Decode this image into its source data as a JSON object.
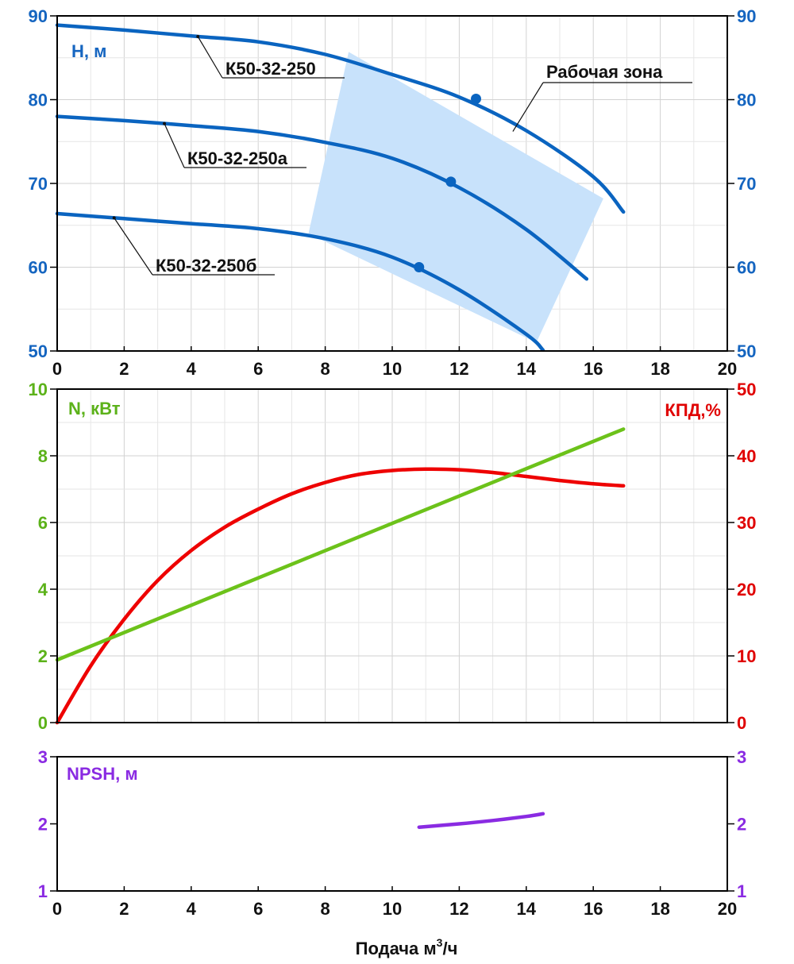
{
  "chart_data": [
    {
      "type": "line",
      "id": "head",
      "xlabel": "",
      "ylabel": "H, м",
      "xlim": [
        0,
        20
      ],
      "ylim": [
        50,
        90
      ],
      "x_ticks": [
        "0",
        "2",
        "4",
        "6",
        "8",
        "10",
        "12",
        "14",
        "16",
        "18",
        "20"
      ],
      "y_ticks": [
        "50",
        "60",
        "70",
        "80",
        "90"
      ],
      "grid": true,
      "colors": {
        "curve": "#0a64c0",
        "axis_label": "#1565c0",
        "zone": "#c8e2fb"
      },
      "series": [
        {
          "name": "К50-32-250",
          "x": [
            0,
            2,
            4,
            6,
            8,
            10,
            12,
            14,
            16,
            16.9
          ],
          "y": [
            88.9,
            88.3,
            87.6,
            86.9,
            85.4,
            83.0,
            80.3,
            76.3,
            70.8,
            66.6
          ],
          "marker": {
            "x": 12.5,
            "y": 80.1
          }
        },
        {
          "name": "К50-32-250а",
          "x": [
            0,
            2,
            4,
            6,
            8,
            10,
            12,
            14,
            15.8
          ],
          "y": [
            78.0,
            77.5,
            76.9,
            76.2,
            74.9,
            73.0,
            69.5,
            64.5,
            58.6
          ],
          "marker": {
            "x": 11.75,
            "y": 70.2
          }
        },
        {
          "name": "К50-32-250б",
          "x": [
            0,
            2,
            4,
            6,
            8,
            10,
            12,
            14,
            14.5
          ],
          "y": [
            66.4,
            65.8,
            65.2,
            64.6,
            63.4,
            61.2,
            57.3,
            52.0,
            50.1
          ],
          "marker": {
            "x": 10.8,
            "y": 60.0
          }
        }
      ],
      "zone": {
        "label": "Рабочая зона",
        "polygon": [
          [
            8.7,
            85.7
          ],
          [
            7.5,
            64.0
          ],
          [
            14.3,
            51.0
          ],
          [
            16.3,
            68.2
          ]
        ]
      }
    },
    {
      "type": "line",
      "id": "power_efficiency",
      "xlabel": "",
      "ylabel_left": "N, кВт",
      "ylabel_right": "КПД,%",
      "ylim_left": [
        0,
        10
      ],
      "ylim_right": [
        0,
        50
      ],
      "xlim": [
        0,
        20
      ],
      "y_ticks_left": [
        "0",
        "2",
        "4",
        "6",
        "8",
        "10"
      ],
      "y_ticks_right": [
        "0",
        "10",
        "20",
        "30",
        "40",
        "50"
      ],
      "grid": true,
      "colors": {
        "power": "#6cc21a",
        "efficiency": "#ee0000",
        "axis_left": "#5cb21a",
        "axis_right": "#e00000"
      },
      "series": [
        {
          "name": "N, кВт",
          "axis": "left",
          "x": [
            0,
            16.9
          ],
          "y": [
            1.88,
            8.8
          ]
        },
        {
          "name": "КПД,%",
          "axis": "right",
          "x": [
            0,
            1,
            2,
            3,
            4,
            5,
            6,
            7,
            8,
            9,
            10,
            11,
            12,
            13,
            14,
            15,
            16,
            16.9
          ],
          "y": [
            0,
            8.5,
            15.5,
            21.3,
            25.8,
            29.3,
            32.0,
            34.3,
            36.0,
            37.2,
            37.8,
            38.0,
            37.9,
            37.5,
            36.9,
            36.3,
            35.8,
            35.5
          ]
        }
      ]
    },
    {
      "type": "line",
      "id": "npsh",
      "xlabel": "Подача м",
      "xlabel_sup": "3",
      "xlabel_tail": "/ч",
      "ylabel": "NPSH, м",
      "xlim": [
        0,
        20
      ],
      "ylim": [
        1,
        3
      ],
      "x_ticks": [
        "0",
        "2",
        "4",
        "6",
        "8",
        "10",
        "12",
        "14",
        "16",
        "18",
        "20"
      ],
      "y_ticks": [
        "1",
        "2",
        "3"
      ],
      "grid": false,
      "colors": {
        "curve": "#8a2be2",
        "axis": "#8a2be2"
      },
      "series": [
        {
          "name": "NPSH, м",
          "x": [
            10.8,
            12,
            13,
            14,
            14.5
          ],
          "y": [
            1.95,
            2.0,
            2.05,
            2.11,
            2.15
          ]
        }
      ]
    }
  ]
}
